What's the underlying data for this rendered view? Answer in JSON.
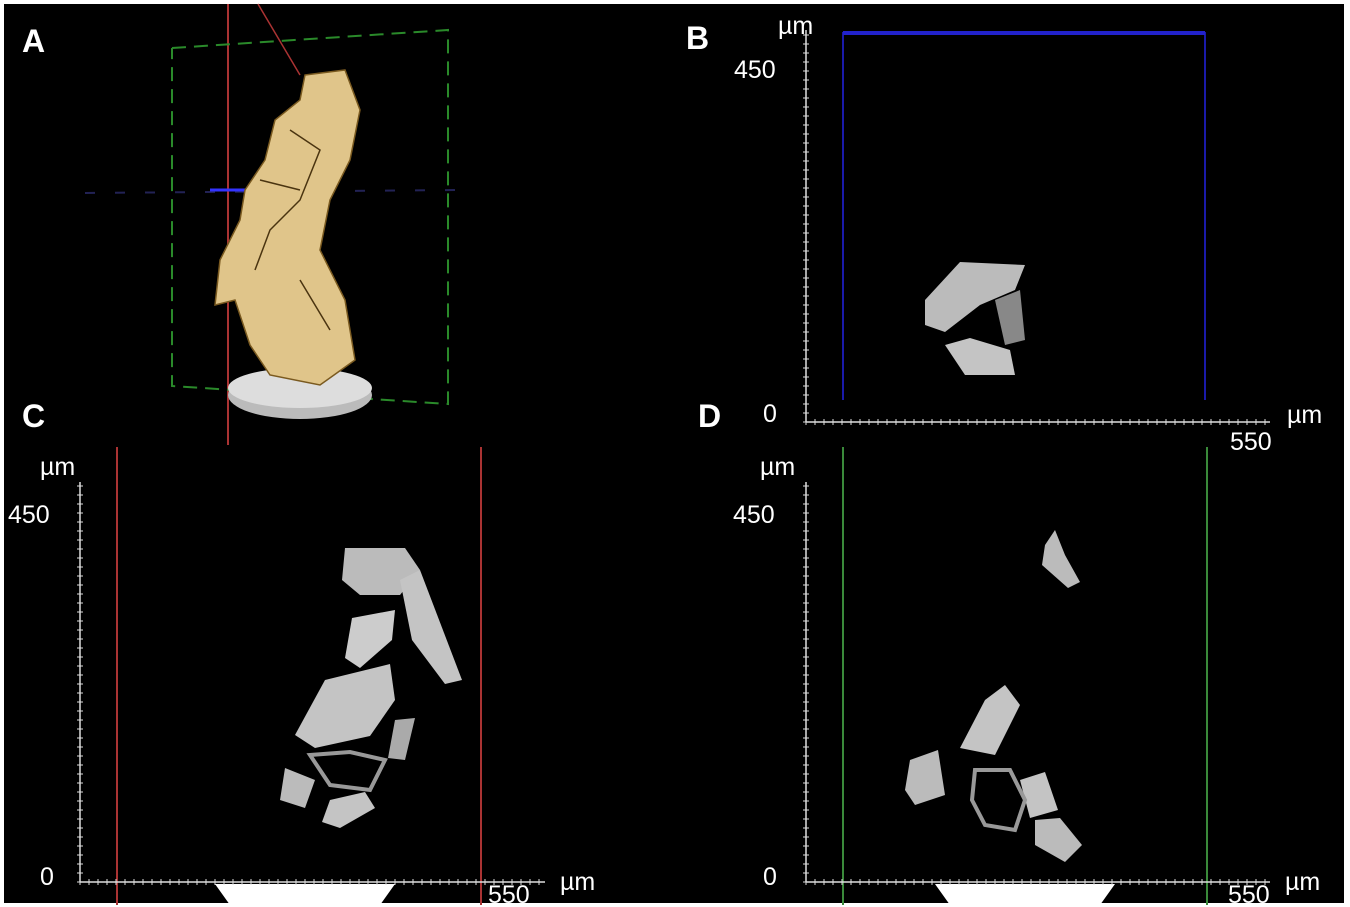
{
  "panels": [
    {
      "label": "A"
    },
    {
      "label": "B",
      "y_unit": "µm",
      "y_max": 450,
      "y_min": 0,
      "x_max": 550,
      "x_unit": "µm"
    },
    {
      "label": "C",
      "y_unit": "µm",
      "y_max": 450,
      "y_min": 0,
      "x_max": 550,
      "x_unit": "µm"
    },
    {
      "label": "D",
      "y_unit": "µm",
      "y_max": 450,
      "y_min": 0,
      "x_max": 550,
      "x_unit": "µm"
    }
  ]
}
